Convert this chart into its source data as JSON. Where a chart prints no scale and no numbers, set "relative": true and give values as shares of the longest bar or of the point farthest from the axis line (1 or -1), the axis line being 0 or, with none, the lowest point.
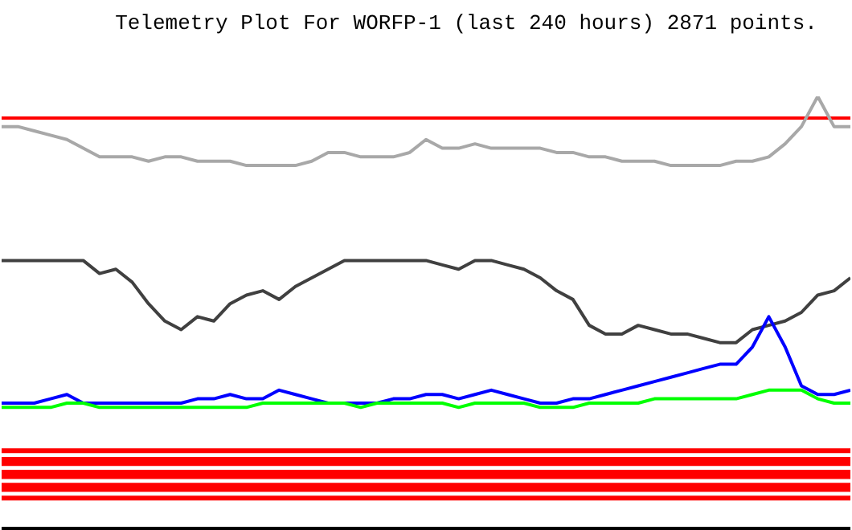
{
  "chart_data": {
    "type": "line",
    "title": "Telemetry Plot For WORFP-1 (last 240 hours) 2871 points.",
    "relative": true,
    "categories": [
      null,
      null,
      null,
      null,
      null,
      null,
      null,
      null,
      null,
      null,
      null,
      null,
      null,
      null,
      null,
      null,
      null,
      null,
      null,
      null,
      null,
      null,
      null,
      null,
      null,
      null,
      null,
      null,
      null,
      null,
      null,
      null,
      null,
      null,
      null,
      null,
      null,
      null,
      null,
      null,
      null,
      null,
      null,
      null,
      null,
      null,
      null,
      null,
      null,
      null,
      null,
      null,
      null
    ],
    "series": [
      {
        "color": "#a8a8a8",
        "values": [
          0.93,
          0.93,
          0.92,
          0.91,
          0.9,
          0.88,
          0.86,
          0.86,
          0.86,
          0.85,
          0.86,
          0.86,
          0.85,
          0.85,
          0.85,
          0.84,
          0.84,
          0.84,
          0.84,
          0.85,
          0.87,
          0.87,
          0.86,
          0.86,
          0.86,
          0.87,
          0.9,
          0.88,
          0.88,
          0.89,
          0.88,
          0.88,
          0.88,
          0.88,
          0.87,
          0.87,
          0.86,
          0.86,
          0.85,
          0.85,
          0.85,
          0.84,
          0.84,
          0.84,
          0.84,
          0.85,
          0.85,
          0.86,
          0.89,
          0.93,
          1,
          0.93,
          0.93
        ]
      },
      {
        "color": "#404040",
        "values": [
          0.62,
          0.62,
          0.62,
          0.62,
          0.62,
          0.62,
          0.59,
          0.6,
          0.57,
          0.52,
          0.48,
          0.46,
          0.49,
          0.48,
          0.52,
          0.54,
          0.55,
          0.53,
          0.56,
          0.58,
          0.6,
          0.62,
          0.62,
          0.62,
          0.62,
          0.62,
          0.62,
          0.61,
          0.6,
          0.62,
          0.62,
          0.61,
          0.6,
          0.58,
          0.55,
          0.53,
          0.47,
          0.45,
          0.45,
          0.47,
          0.46,
          0.45,
          0.45,
          0.44,
          0.43,
          0.43,
          0.46,
          0.47,
          0.48,
          0.5,
          0.54,
          0.55,
          0.58
        ]
      },
      {
        "color": "#0000ff",
        "values": [
          0.29,
          0.29,
          0.29,
          0.3,
          0.31,
          0.29,
          0.29,
          0.29,
          0.29,
          0.29,
          0.29,
          0.29,
          0.3,
          0.3,
          0.31,
          0.3,
          0.3,
          0.32,
          0.31,
          0.3,
          0.29,
          0.29,
          0.29,
          0.29,
          0.3,
          0.3,
          0.31,
          0.31,
          0.3,
          0.31,
          0.32,
          0.31,
          0.3,
          0.29,
          0.29,
          0.3,
          0.3,
          0.31,
          0.32,
          0.33,
          0.34,
          0.35,
          0.36,
          0.37,
          0.38,
          0.38,
          0.42,
          0.49,
          0.42,
          0.33,
          0.31,
          0.31,
          0.32
        ]
      },
      {
        "color": "#00ff00",
        "values": [
          0.28,
          0.28,
          0.28,
          0.28,
          0.29,
          0.29,
          0.28,
          0.28,
          0.28,
          0.28,
          0.28,
          0.28,
          0.28,
          0.28,
          0.28,
          0.28,
          0.29,
          0.29,
          0.29,
          0.29,
          0.29,
          0.29,
          0.28,
          0.29,
          0.29,
          0.29,
          0.29,
          0.29,
          0.28,
          0.29,
          0.29,
          0.29,
          0.29,
          0.28,
          0.28,
          0.28,
          0.29,
          0.29,
          0.29,
          0.29,
          0.3,
          0.3,
          0.3,
          0.3,
          0.3,
          0.3,
          0.31,
          0.32,
          0.32,
          0.32,
          0.3,
          0.29,
          0.29
        ]
      }
    ],
    "ref_lines": [
      {
        "axis": "y",
        "value": 0.95,
        "color": "#ff0000"
      },
      {
        "axis": "y",
        "value": 0.18,
        "color": "#ff0000"
      },
      {
        "axis": "y",
        "value": 0.16,
        "color": "#ff0000"
      },
      {
        "axis": "y",
        "value": 0.15,
        "color": "#ff0000"
      },
      {
        "axis": "y",
        "value": 0.13,
        "color": "#ff0000"
      },
      {
        "axis": "y",
        "value": 0.12,
        "color": "#ff0000"
      },
      {
        "axis": "y",
        "value": 0.1,
        "color": "#ff0000"
      },
      {
        "axis": "y",
        "value": 0.09,
        "color": "#ff0000"
      },
      {
        "axis": "y",
        "value": 0.07,
        "color": "#ff0000"
      }
    ]
  }
}
